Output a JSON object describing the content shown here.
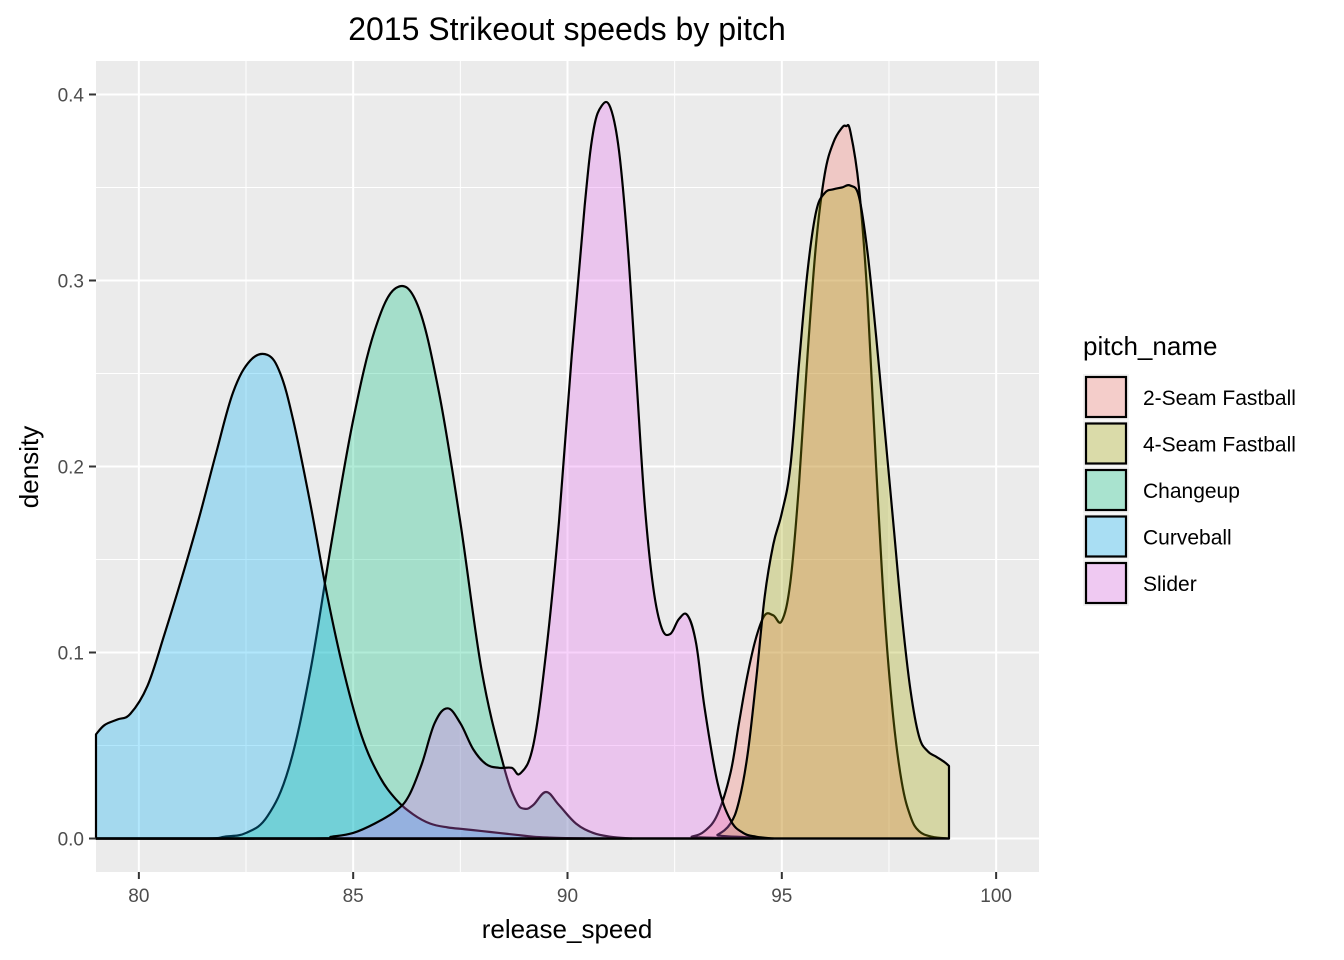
{
  "chart_data": {
    "type": "area",
    "title": "2015 Strikeout speeds by pitch",
    "xlabel": "release_speed",
    "ylabel": "density",
    "xlim": [
      79,
      101
    ],
    "ylim": [
      -0.018,
      0.418
    ],
    "x_ticks": [
      80,
      85,
      90,
      95,
      100
    ],
    "y_ticks": [
      0.0,
      0.1,
      0.2,
      0.3,
      0.4
    ],
    "x_tick_labels": [
      "80",
      "85",
      "90",
      "95",
      "100"
    ],
    "y_tick_labels": [
      "0.0",
      "0.1",
      "0.2",
      "0.3",
      "0.4"
    ],
    "grid": true,
    "legend": {
      "title": "pitch_name",
      "position": "right"
    },
    "series": [
      {
        "name": "2-Seam Fastball",
        "color": "#F8766D",
        "x": [
          79,
          92.6,
          92.9,
          93.2,
          93.5,
          93.8,
          94.0,
          94.2,
          94.4,
          94.6,
          94.8,
          95.0,
          95.2,
          95.4,
          95.6,
          95.8,
          96.0,
          96.2,
          96.4,
          96.5,
          96.6,
          96.8,
          97.0,
          97.2,
          97.4,
          97.6,
          97.8,
          98.0,
          98.2,
          98.5,
          98.9
        ],
        "y": [
          0,
          0,
          0.001,
          0.004,
          0.013,
          0.035,
          0.062,
          0.088,
          0.108,
          0.12,
          0.12,
          0.117,
          0.138,
          0.19,
          0.26,
          0.32,
          0.357,
          0.374,
          0.382,
          0.383,
          0.38,
          0.35,
          0.29,
          0.2,
          0.12,
          0.065,
          0.03,
          0.012,
          0.004,
          0.001,
          0
        ]
      },
      {
        "name": "4-Seam Fastball",
        "color": "#A3A500",
        "x": [
          79,
          93.2,
          93.5,
          93.8,
          94.0,
          94.2,
          94.4,
          94.6,
          94.8,
          95.0,
          95.2,
          95.4,
          95.6,
          95.8,
          96.0,
          96.2,
          96.4,
          96.6,
          96.8,
          97.0,
          97.2,
          97.4,
          97.6,
          97.8,
          98.0,
          98.2,
          98.4,
          98.6,
          98.8,
          98.9
        ],
        "y": [
          0,
          0,
          0.002,
          0.008,
          0.02,
          0.045,
          0.085,
          0.13,
          0.158,
          0.175,
          0.2,
          0.255,
          0.305,
          0.337,
          0.347,
          0.349,
          0.35,
          0.351,
          0.345,
          0.315,
          0.27,
          0.22,
          0.17,
          0.12,
          0.08,
          0.055,
          0.047,
          0.044,
          0.041,
          0.039
        ]
      },
      {
        "name": "Changeup",
        "color": "#00BF7D",
        "x": [
          79,
          81.5,
          82.0,
          82.5,
          83.0,
          83.5,
          84.0,
          84.5,
          85.0,
          85.5,
          86.0,
          86.5,
          87.0,
          87.5,
          88.0,
          88.5,
          88.8,
          89.0,
          89.2,
          89.5,
          89.8,
          90.2,
          90.6,
          91.0,
          91.5
        ],
        "y": [
          0,
          0,
          0.001,
          0.003,
          0.012,
          0.038,
          0.09,
          0.16,
          0.225,
          0.273,
          0.296,
          0.287,
          0.24,
          0.17,
          0.09,
          0.04,
          0.02,
          0.016,
          0.018,
          0.025,
          0.018,
          0.008,
          0.003,
          0.001,
          0
        ]
      },
      {
        "name": "Curveball",
        "color": "#00B0F6",
        "x": [
          79,
          79.2,
          79.5,
          79.8,
          80.2,
          80.6,
          81.0,
          81.4,
          81.8,
          82.2,
          82.6,
          83.0,
          83.3,
          83.6,
          84.0,
          84.4,
          84.8,
          85.2,
          85.6,
          86.0,
          86.4,
          86.8,
          87.2,
          87.6,
          88.0,
          88.4,
          88.8,
          89.2,
          89.6,
          90.0,
          90.4
        ],
        "y": [
          0.056,
          0.061,
          0.064,
          0.067,
          0.082,
          0.11,
          0.14,
          0.172,
          0.207,
          0.24,
          0.257,
          0.26,
          0.25,
          0.225,
          0.18,
          0.13,
          0.088,
          0.055,
          0.034,
          0.021,
          0.013,
          0.008,
          0.006,
          0.005,
          0.004,
          0.003,
          0.002,
          0.001,
          0.0005,
          0.0002,
          0
        ]
      },
      {
        "name": "Slider",
        "color": "#E76BF3",
        "x": [
          79,
          84.0,
          84.5,
          85.0,
          85.5,
          86.0,
          86.3,
          86.6,
          86.9,
          87.2,
          87.5,
          87.8,
          88.1,
          88.4,
          88.7,
          88.9,
          89.2,
          89.5,
          89.8,
          90.1,
          90.4,
          90.6,
          90.8,
          91.0,
          91.2,
          91.4,
          91.6,
          91.8,
          92.0,
          92.2,
          92.4,
          92.6,
          92.8,
          93.0,
          93.2,
          93.5,
          93.8,
          94.1,
          94.4,
          94.8
        ],
        "y": [
          0,
          0,
          0.001,
          0.003,
          0.008,
          0.015,
          0.023,
          0.04,
          0.062,
          0.07,
          0.062,
          0.048,
          0.04,
          0.038,
          0.038,
          0.035,
          0.05,
          0.1,
          0.17,
          0.26,
          0.34,
          0.38,
          0.394,
          0.393,
          0.37,
          0.32,
          0.25,
          0.18,
          0.135,
          0.113,
          0.11,
          0.118,
          0.12,
          0.105,
          0.07,
          0.03,
          0.01,
          0.003,
          0.001,
          0
        ]
      }
    ]
  }
}
